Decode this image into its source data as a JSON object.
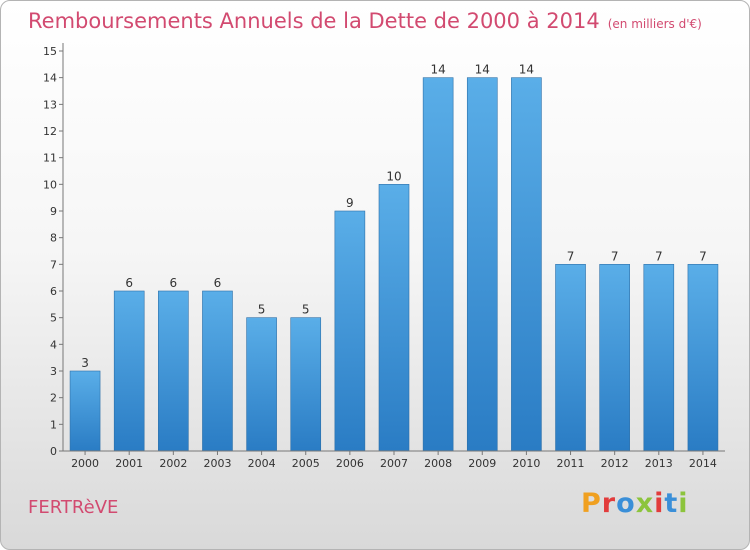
{
  "header": {
    "title": "Remboursements Annuels de la Dette de 2000 à 2014",
    "unit": "(en milliers d'€)"
  },
  "footer": {
    "commune": "FERTRèVE",
    "logo": "Proxiti",
    "logo_colors": [
      "#f0a020",
      "#e23c3c",
      "#3a8fd8",
      "#8cc43c",
      "#e23c3c",
      "#3a8fd8",
      "#8cc43c"
    ]
  },
  "chart_data": {
    "type": "bar",
    "title": "Remboursements Annuels de la Dette de 2000 à 2014",
    "xlabel": "",
    "ylabel": "",
    "categories": [
      "2000",
      "2001",
      "2002",
      "2003",
      "2004",
      "2005",
      "2006",
      "2007",
      "2008",
      "2009",
      "2010",
      "2011",
      "2012",
      "2013",
      "2014"
    ],
    "values": [
      3,
      6,
      6,
      6,
      5,
      5,
      9,
      10,
      14,
      14,
      14,
      7,
      7,
      7,
      7
    ],
    "data_labels": [
      "3",
      "6",
      "6",
      "6",
      "5",
      "5",
      "9",
      "10",
      "14",
      "14",
      "14",
      "7",
      "7",
      "7",
      "7"
    ],
    "yticks": [
      "0",
      "1",
      "2",
      "3",
      "4",
      "5",
      "6",
      "7",
      "8",
      "9",
      "10",
      "11",
      "12",
      "13",
      "14",
      "15"
    ],
    "ylim": [
      0,
      15
    ],
    "grid": false,
    "bar_color_top": "#5aaee8",
    "bar_color_bottom": "#2a7cc4"
  }
}
